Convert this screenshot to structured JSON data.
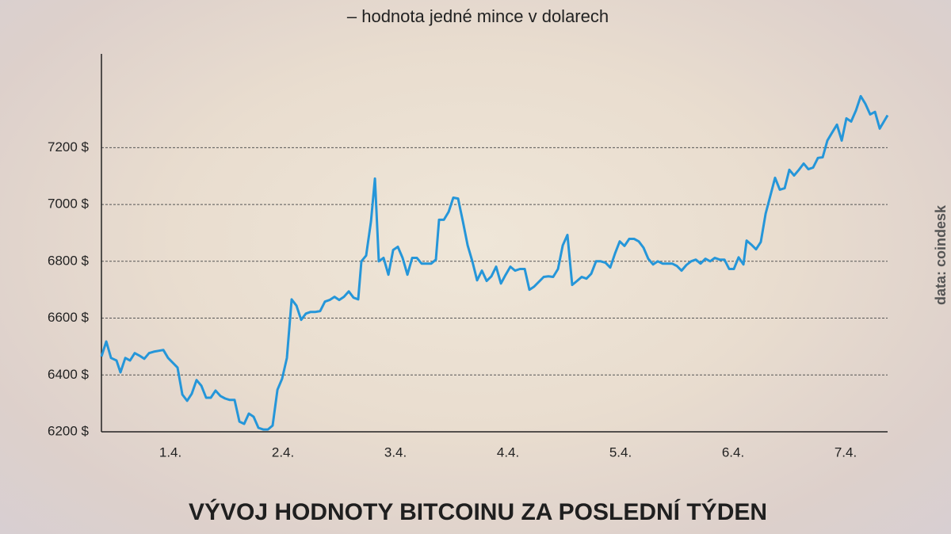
{
  "chart_data": {
    "type": "line",
    "title": "VÝVOJ HODNOTY BITCOINU ZA POSLEDNÍ TÝDEN",
    "subtitle": "– hodnota jedné mince v dolarech",
    "source": "data: coindesk",
    "color": "#2596d9",
    "grid": true,
    "ylim": [
      6200,
      7530
    ],
    "yticks": [
      {
        "value": 6200,
        "label": "6200 $"
      },
      {
        "value": 6400,
        "label": "6400 $"
      },
      {
        "value": 6600,
        "label": "6600 $"
      },
      {
        "value": 6800,
        "label": "6800 $"
      },
      {
        "value": 7000,
        "label": "7000 $"
      },
      {
        "value": 7200,
        "label": "7200 $"
      }
    ],
    "xlim": [
      0.387,
      7.373
    ],
    "xticks": [
      {
        "value": 1,
        "label": "1.4."
      },
      {
        "value": 2,
        "label": "2.4."
      },
      {
        "value": 3,
        "label": "3.4."
      },
      {
        "value": 4,
        "label": "4.4."
      },
      {
        "value": 5,
        "label": "5.4."
      },
      {
        "value": 6,
        "label": "6.4."
      },
      {
        "value": 7,
        "label": "7.4."
      }
    ],
    "x": [
      0.387,
      0.43,
      0.472,
      0.521,
      0.556,
      0.599,
      0.641,
      0.683,
      0.725,
      0.768,
      0.81,
      0.852,
      0.894,
      0.937,
      0.979,
      1.021,
      1.063,
      1.106,
      1.148,
      1.19,
      1.232,
      1.275,
      1.317,
      1.359,
      1.401,
      1.444,
      1.486,
      1.528,
      1.57,
      1.613,
      1.655,
      1.697,
      1.739,
      1.782,
      1.824,
      1.866,
      1.908,
      1.951,
      1.993,
      2.035,
      2.077,
      2.12,
      2.162,
      2.204,
      2.246,
      2.289,
      2.331,
      2.373,
      2.415,
      2.458,
      2.5,
      2.542,
      2.585,
      2.627,
      2.669,
      2.697,
      2.739,
      2.782,
      2.817,
      2.852,
      2.894,
      2.937,
      2.979,
      3.021,
      3.063,
      3.106,
      3.148,
      3.19,
      3.232,
      3.275,
      3.317,
      3.359,
      3.387,
      3.43,
      3.472,
      3.514,
      3.556,
      3.599,
      3.641,
      3.683,
      3.725,
      3.768,
      3.81,
      3.852,
      3.894,
      3.937,
      3.979,
      4.021,
      4.063,
      4.106,
      4.148,
      4.19,
      4.232,
      4.275,
      4.317,
      4.359,
      4.401,
      4.444,
      4.486,
      4.528,
      4.57,
      4.613,
      4.655,
      4.697,
      4.739,
      4.782,
      4.824,
      4.866,
      4.908,
      4.951,
      4.993,
      5.035,
      5.077,
      5.12,
      5.162,
      5.204,
      5.246,
      5.289,
      5.331,
      5.373,
      5.415,
      5.458,
      5.5,
      5.542,
      5.585,
      5.627,
      5.669,
      5.711,
      5.754,
      5.796,
      5.838,
      5.88,
      5.923,
      5.965,
      6.007,
      6.049,
      6.092,
      6.12,
      6.162,
      6.204,
      6.246,
      6.289,
      6.331,
      6.373,
      6.415,
      6.458,
      6.5,
      6.542,
      6.585,
      6.627,
      6.669,
      6.711,
      6.754,
      6.796,
      6.838,
      6.88,
      6.923,
      6.965,
      7.007,
      7.049,
      7.092,
      7.134,
      7.176,
      7.218,
      7.261,
      7.303,
      7.345,
      7.373
    ],
    "values": [
      6465,
      6518,
      6460,
      6451,
      6409,
      6460,
      6451,
      6477,
      6468,
      6457,
      6477,
      6482,
      6485,
      6488,
      6460,
      6443,
      6426,
      6331,
      6309,
      6334,
      6382,
      6362,
      6320,
      6320,
      6345,
      6326,
      6317,
      6312,
      6312,
      6236,
      6228,
      6264,
      6253,
      6214,
      6208,
      6208,
      6222,
      6348,
      6387,
      6460,
      6666,
      6644,
      6594,
      6616,
      6622,
      6622,
      6625,
      6658,
      6664,
      6675,
      6664,
      6675,
      6694,
      6672,
      6666,
      6800,
      6820,
      6940,
      7091,
      6800,
      6812,
      6753,
      6840,
      6851,
      6812,
      6753,
      6812,
      6812,
      6792,
      6792,
      6792,
      6806,
      6946,
      6946,
      6974,
      7024,
      7021,
      6940,
      6856,
      6800,
      6733,
      6767,
      6731,
      6747,
      6781,
      6722,
      6753,
      6781,
      6767,
      6773,
      6773,
      6700,
      6711,
      6728,
      6745,
      6747,
      6745,
      6773,
      6856,
      6893,
      6717,
      6731,
      6745,
      6739,
      6756,
      6800,
      6800,
      6795,
      6778,
      6828,
      6870,
      6854,
      6879,
      6879,
      6870,
      6848,
      6809,
      6789,
      6800,
      6792,
      6792,
      6792,
      6784,
      6767,
      6787,
      6800,
      6806,
      6792,
      6809,
      6800,
      6812,
      6806,
      6806,
      6773,
      6773,
      6814,
      6789,
      6873,
      6859,
      6842,
      6868,
      6968,
      7030,
      7094,
      7052,
      7057,
      7122,
      7102,
      7122,
      7144,
      7124,
      7130,
      7164,
      7166,
      7225,
      7253,
      7281,
      7225,
      7303,
      7292,
      7331,
      7381,
      7354,
      7317,
      7326,
      7267,
      7295,
      7314
    ]
  }
}
